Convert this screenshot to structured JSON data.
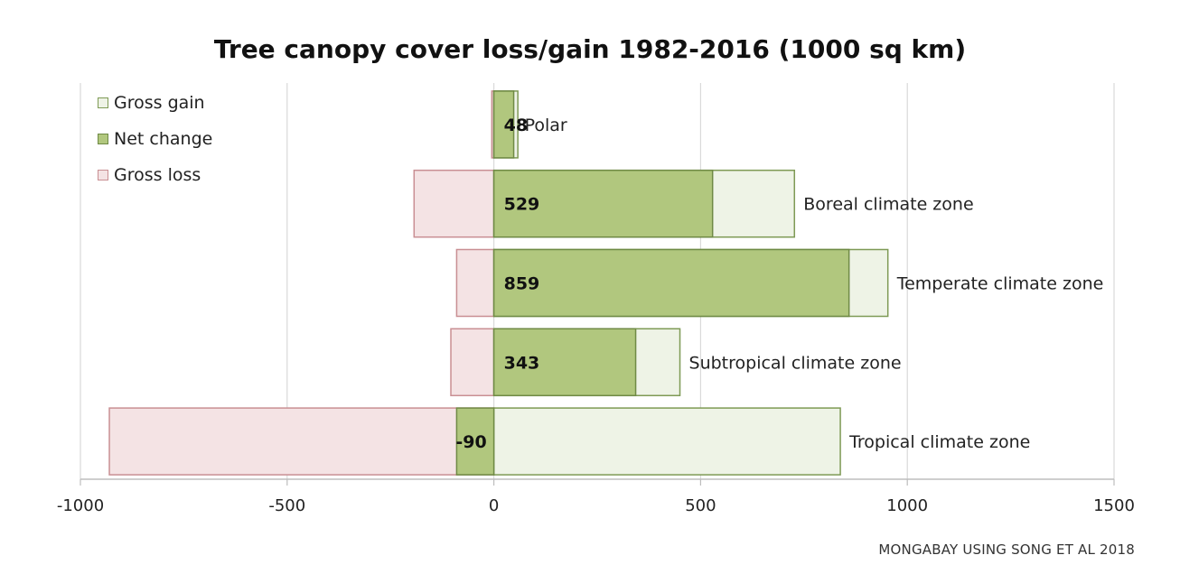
{
  "chart_data": {
    "type": "bar",
    "title": "Tree canopy cover loss/gain 1982-2016 (1000 sq km)",
    "orientation": "horizontal",
    "categories": [
      "Polar",
      "Boreal climate zone",
      "Temperate climate zone",
      "Subtropical climate zone",
      "Tropical climate zone"
    ],
    "series": [
      {
        "name": "Gross gain",
        "values": [
          58,
          727,
          953,
          450,
          838
        ],
        "fill": "#eef3e6",
        "stroke": "#7e9a55"
      },
      {
        "name": "Net change",
        "values": [
          48,
          529,
          859,
          343,
          -90
        ],
        "fill": "#b1c77e",
        "stroke": "#6f8a45"
      },
      {
        "name": "Gross loss",
        "values": [
          -5,
          -193,
          -90,
          -104,
          -930
        ],
        "fill": "#f4e3e4",
        "stroke": "#c98f93"
      }
    ],
    "net_labels": [
      "48",
      "529",
      "859",
      "343",
      "-90"
    ],
    "xlim": [
      -1000,
      1500
    ],
    "xticks": [
      "-1000",
      "-500",
      "0",
      "500",
      "1000",
      "1500"
    ],
    "xtick_values": [
      -1000,
      -500,
      0,
      500,
      1000,
      1500
    ],
    "grid": true,
    "legend_position": "top-left"
  },
  "source_note": "MONGABAY USING SONG ET AL 2018"
}
